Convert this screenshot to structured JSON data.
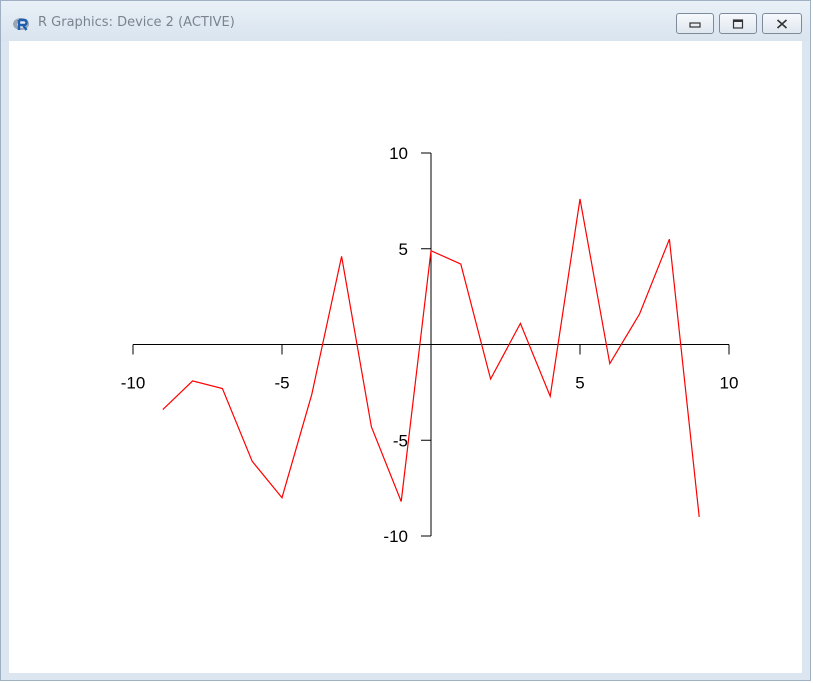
{
  "window": {
    "title": "R Graphics: Device 2 (ACTIVE)",
    "icons": {
      "app": "r-logo-icon",
      "minimize": "minimize-icon",
      "maximize": "maximize-icon",
      "close": "close-icon"
    }
  },
  "colors": {
    "line": "#ff0000",
    "axis": "#000000",
    "background": "#ffffff"
  },
  "chart_data": {
    "type": "line",
    "title": "",
    "xlabel": "",
    "ylabel": "",
    "xlim": [
      -10,
      10
    ],
    "ylim": [
      -10,
      10
    ],
    "grid": false,
    "x_ticks": [
      -10,
      -5,
      5,
      10
    ],
    "y_ticks": [
      -10,
      -5,
      5,
      10
    ],
    "x_tick_labels": [
      "-10",
      "-5",
      "5",
      "10"
    ],
    "y_tick_labels": [
      "-10",
      "-5",
      "5",
      "10"
    ],
    "axes_through_origin": true,
    "series": [
      {
        "color": "#ff0000",
        "x": [
          -9,
          -8,
          -7,
          -6,
          -5,
          -4,
          -3,
          -2,
          -1,
          0,
          1,
          2,
          3,
          4,
          5,
          6,
          7,
          8,
          9
        ],
        "y": [
          -3.4,
          -1.9,
          -2.3,
          -6.1,
          -8.0,
          -2.6,
          4.6,
          -4.3,
          -8.2,
          4.9,
          4.2,
          -1.8,
          1.1,
          -2.7,
          7.6,
          -1.0,
          1.6,
          5.5,
          -9.0
        ]
      }
    ]
  }
}
